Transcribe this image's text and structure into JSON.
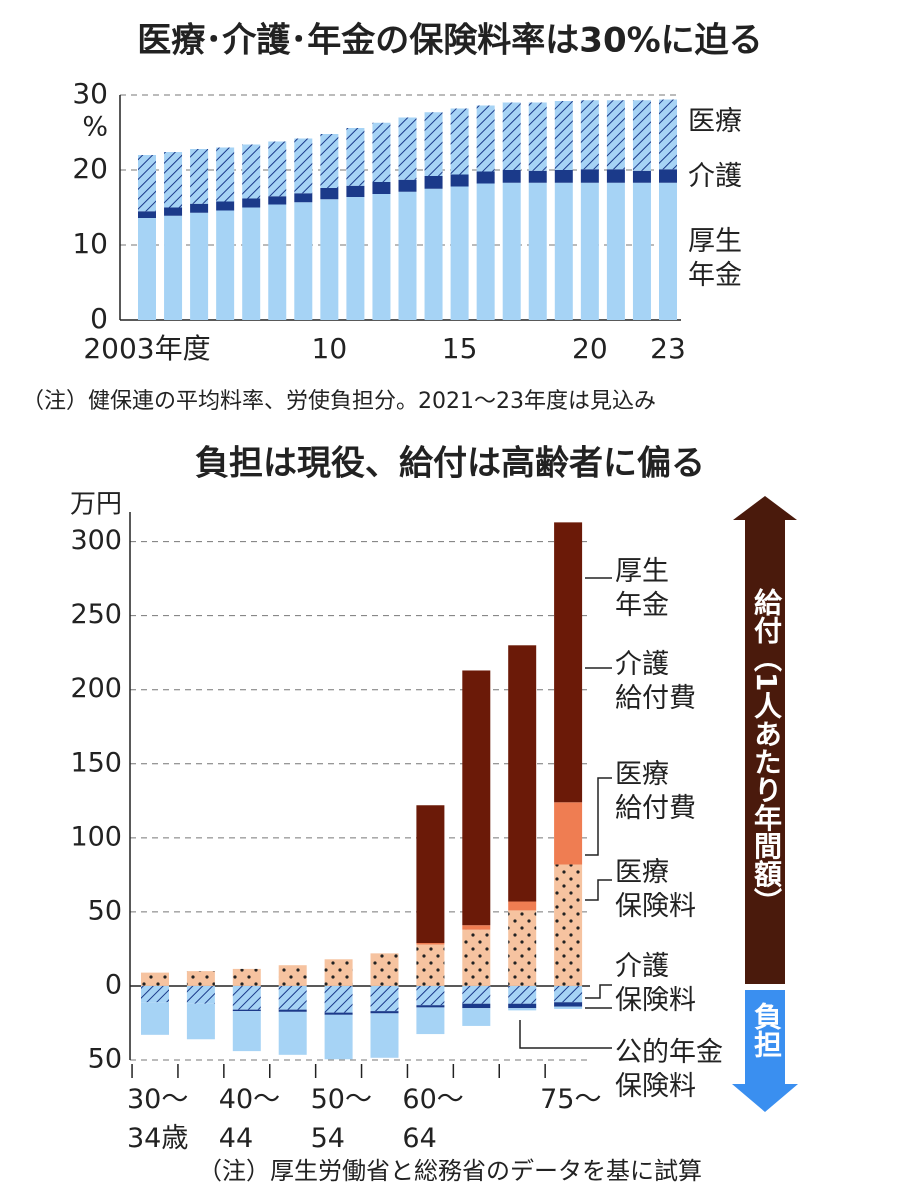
{
  "chart_data": [
    {
      "type": "bar",
      "stacked": true,
      "title": "医療･介護･年金の保険料率は30%に迫る",
      "y_label": "%",
      "categories": [
        "2003年度",
        null,
        null,
        null,
        null,
        null,
        null,
        "10",
        null,
        null,
        null,
        null,
        "15",
        null,
        null,
        null,
        null,
        "20",
        null,
        null,
        "23"
      ],
      "series": [
        {
          "name": "厚生\n年金",
          "color": "#a6d3f5",
          "values": [
            13.6,
            13.9,
            14.3,
            14.6,
            15.0,
            15.4,
            15.7,
            16.1,
            16.4,
            16.8,
            17.1,
            17.5,
            17.8,
            18.2,
            18.3,
            18.3,
            18.3,
            18.3,
            18.3,
            18.3,
            18.3
          ]
        },
        {
          "name": "介護",
          "color": "#1b3a8a",
          "values": [
            0.9,
            1.1,
            1.2,
            1.2,
            1.2,
            1.1,
            1.2,
            1.5,
            1.5,
            1.6,
            1.6,
            1.7,
            1.6,
            1.6,
            1.7,
            1.6,
            1.7,
            1.8,
            1.8,
            1.6,
            1.8
          ]
        },
        {
          "name": "医療",
          "color": "#a6d3f5",
          "pattern": "hatch",
          "values": [
            7.5,
            7.4,
            7.3,
            7.2,
            7.2,
            7.3,
            7.3,
            7.2,
            7.7,
            7.9,
            8.3,
            8.5,
            8.8,
            8.8,
            9.0,
            9.1,
            9.2,
            9.2,
            9.2,
            9.4,
            9.3
          ]
        }
      ],
      "ylim": [
        0,
        30
      ],
      "yticks": [
        0,
        10,
        20,
        30
      ],
      "grid": true,
      "note": "（注）健保連の平均料率、労使負担分。2021～23年度は見込み"
    },
    {
      "type": "bar",
      "stacked": true,
      "title": "負担は現役、給付は高齢者に偏る",
      "y_label": "万円",
      "categories": [
        "30～\n34歳",
        null,
        "40～\n44",
        null,
        "50～\n54",
        null,
        "60～\n64",
        null,
        null,
        "75～"
      ],
      "series": [
        {
          "name": "医療\n給付費",
          "color": "#f6c3a0",
          "pattern": "dots",
          "values": [
            9,
            10,
            11.5,
            14,
            18,
            22,
            28,
            38,
            51,
            82
          ]
        },
        {
          "name": "介護\n給付費",
          "color": "#ef7d52",
          "values": [
            0,
            0,
            0,
            0,
            0,
            0,
            1,
            3,
            6,
            42
          ]
        },
        {
          "name": "厚生\n年金",
          "color": "#6b1a08",
          "values": [
            0,
            0,
            0,
            0,
            0,
            0,
            93,
            172,
            173,
            189
          ]
        },
        {
          "name": "医療\n保険料",
          "color": "#a6d3f5",
          "pattern": "hatch",
          "values": [
            -11,
            -12,
            -16,
            -16,
            -18,
            -17,
            -13,
            -12,
            -12,
            -11
          ]
        },
        {
          "name": "介護\n保険料",
          "color": "#1b3a8a",
          "values": [
            0,
            0,
            -1,
            -1.5,
            -1.5,
            -1.5,
            -1.5,
            -3,
            -3,
            -3
          ]
        },
        {
          "name": "公的年金\n保険料",
          "color": "#a6d3f5",
          "values": [
            -22,
            -24,
            -27,
            -29,
            -30,
            -30,
            -18,
            -12,
            -1.5,
            -1.5
          ]
        }
      ],
      "ylim": [
        -50,
        320
      ],
      "yticks": [
        {
          "value": -50,
          "label": "50"
        },
        0,
        50,
        100,
        150,
        200,
        250,
        300
      ],
      "grid": true,
      "benefit_label": "給付（1人あたり年間額）",
      "burden_label": "負担",
      "note": "（注）厚生労働省と総務省のデータを基に試算"
    }
  ]
}
